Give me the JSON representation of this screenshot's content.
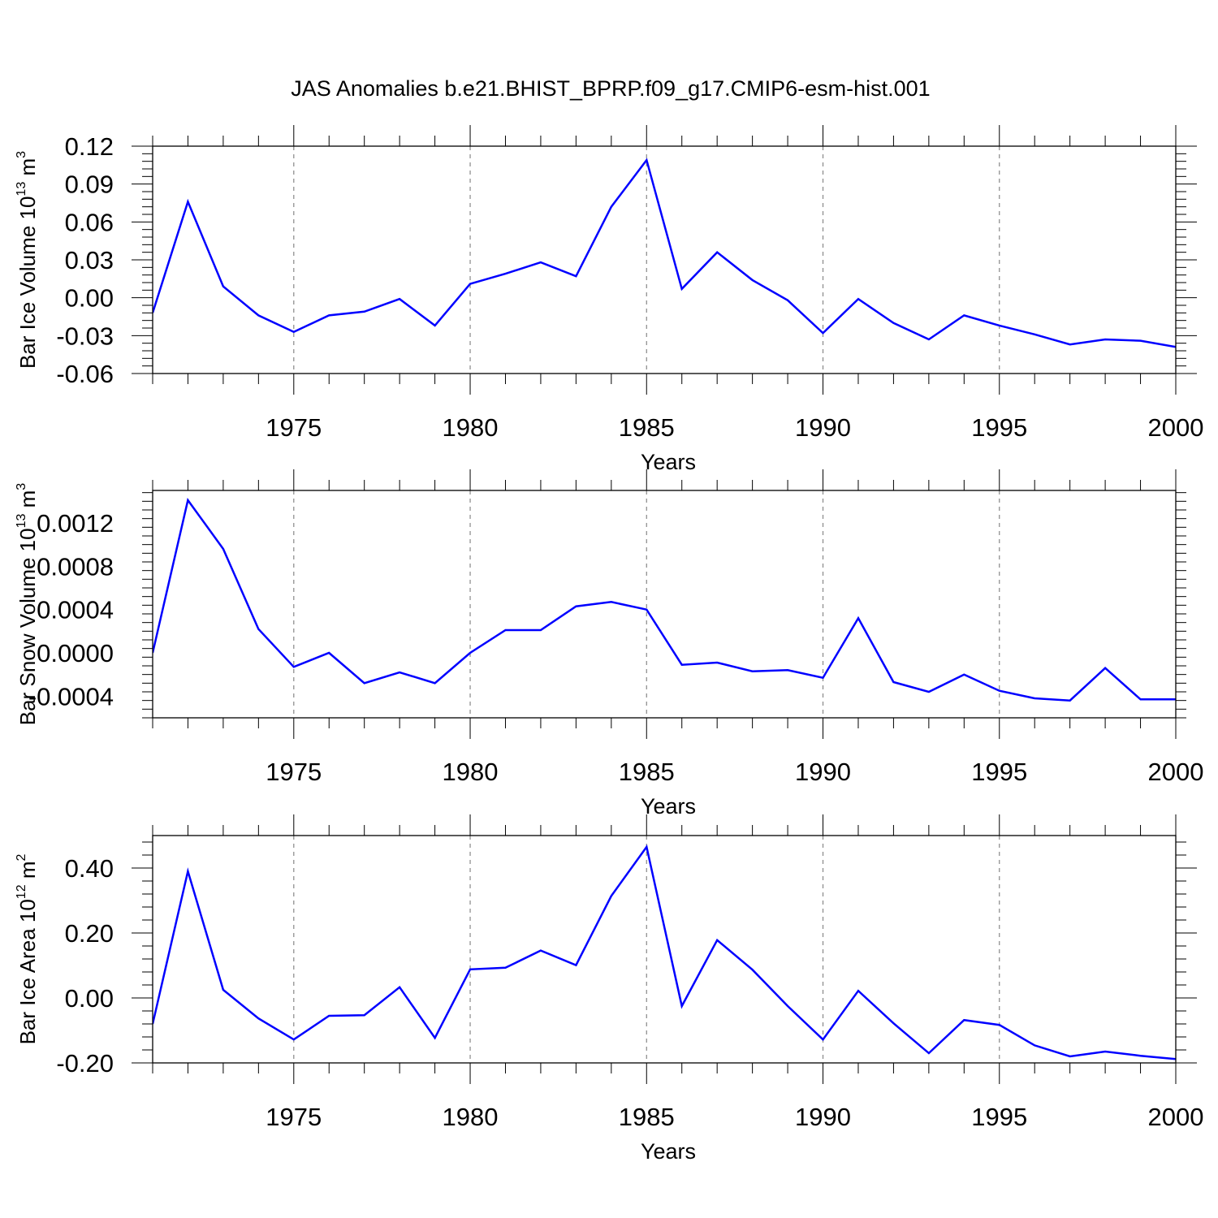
{
  "title": "JAS Anomalies b.e21.BHIST_BPRP.f09_g17.CMIP6-esm-hist.001",
  "chart_data": [
    {
      "type": "line",
      "ylabel": {
        "text": "Bar Ice Volume 10",
        "exp": "13",
        "unit": " m",
        "unit_exp": "3"
      },
      "xlabel": "Years",
      "xlim": [
        1971,
        2000
      ],
      "ylim": [
        -0.06,
        0.12
      ],
      "x_ticks": [
        "1975",
        "1980",
        "1985",
        "1990",
        "1995",
        "2000"
      ],
      "y_ticks": [
        "0.12",
        "0.09",
        "0.06",
        "0.03",
        "0.00",
        "-0.03",
        "-0.06"
      ],
      "y_tick_values": [
        0.12,
        0.09,
        0.06,
        0.03,
        0.0,
        -0.03,
        -0.06
      ],
      "grid": "dashed vertical at major x ticks",
      "line_color": "#0000ff",
      "series": [
        {
          "x": [
            1971,
            1972,
            1973,
            1974,
            1975,
            1976,
            1977,
            1978,
            1979,
            1980,
            1981,
            1982,
            1983,
            1984,
            1985,
            1986,
            1987,
            1988,
            1989,
            1990,
            1991,
            1992,
            1993,
            1994,
            1995,
            1996,
            1997,
            1998,
            1999,
            2000
          ],
          "values": [
            -0.012,
            0.076,
            0.009,
            -0.014,
            -0.027,
            -0.014,
            -0.011,
            -0.001,
            -0.022,
            0.011,
            0.019,
            0.028,
            0.017,
            0.072,
            0.109,
            0.007,
            0.036,
            0.014,
            -0.002,
            -0.028,
            -0.001,
            -0.02,
            -0.033,
            -0.014,
            -0.022,
            -0.029,
            -0.037,
            -0.033,
            -0.034,
            -0.039
          ]
        }
      ]
    },
    {
      "type": "line",
      "ylabel": {
        "text": "Bar Snow Volume 10",
        "exp": "13",
        "unit": " m",
        "unit_exp": "3"
      },
      "xlabel": "Years",
      "xlim": [
        1971,
        2000
      ],
      "ylim": [
        -0.0006,
        0.0015
      ],
      "x_ticks": [
        "1975",
        "1980",
        "1985",
        "1990",
        "1995",
        "2000"
      ],
      "y_ticks": [
        "0.0012",
        "0.0008",
        "0.0004",
        "0.0000",
        "-0.0004"
      ],
      "y_tick_values": [
        0.0012,
        0.0008,
        0.0004,
        0.0,
        -0.0004
      ],
      "grid": "dashed vertical at major x ticks",
      "line_color": "#0000ff",
      "series": [
        {
          "x": [
            1971,
            1972,
            1973,
            1974,
            1975,
            1976,
            1977,
            1978,
            1979,
            1980,
            1981,
            1982,
            1983,
            1984,
            1985,
            1986,
            1987,
            1988,
            1989,
            1990,
            1991,
            1992,
            1993,
            1994,
            1995,
            1996,
            1997,
            1998,
            1999,
            2000
          ],
          "values": [
            0.0,
            0.00141,
            0.00096,
            0.00022,
            -0.00013,
            0.0,
            -0.00028,
            -0.00018,
            -0.00028,
            0.0,
            0.00021,
            0.00021,
            0.00043,
            0.00047,
            0.0004,
            -0.00011,
            -9e-05,
            -0.00017,
            -0.00016,
            -0.00023,
            0.00032,
            -0.00027,
            -0.00036,
            -0.0002,
            -0.00035,
            -0.00042,
            -0.00044,
            -0.00014,
            -0.00043,
            -0.00043
          ]
        }
      ]
    },
    {
      "type": "line",
      "ylabel": {
        "text": "Bar Ice Area 10",
        "exp": "12",
        "unit": " m",
        "unit_exp": "2"
      },
      "xlabel": "Years",
      "xlim": [
        1971,
        2000
      ],
      "ylim": [
        -0.2,
        0.5
      ],
      "x_ticks": [
        "1975",
        "1980",
        "1985",
        "1990",
        "1995",
        "2000"
      ],
      "y_ticks": [
        "0.40",
        "0.20",
        "0.00",
        "-0.20"
      ],
      "y_tick_values": [
        0.4,
        0.2,
        0.0,
        -0.2
      ],
      "grid": "dashed vertical at major x ticks",
      "line_color": "#0000ff",
      "series": [
        {
          "x": [
            1971,
            1972,
            1973,
            1974,
            1975,
            1976,
            1977,
            1978,
            1979,
            1980,
            1981,
            1982,
            1983,
            1984,
            1985,
            1986,
            1987,
            1988,
            1989,
            1990,
            1991,
            1992,
            1993,
            1994,
            1995,
            1996,
            1997,
            1998,
            1999,
            2000
          ],
          "values": [
            -0.08,
            0.39,
            0.025,
            -0.063,
            -0.128,
            -0.055,
            -0.053,
            0.033,
            -0.123,
            0.088,
            0.093,
            0.146,
            0.101,
            0.314,
            0.465,
            -0.025,
            0.178,
            0.087,
            -0.025,
            -0.128,
            0.022,
            -0.078,
            -0.17,
            -0.068,
            -0.083,
            -0.146,
            -0.18,
            -0.165,
            -0.178,
            -0.188
          ]
        }
      ]
    }
  ]
}
